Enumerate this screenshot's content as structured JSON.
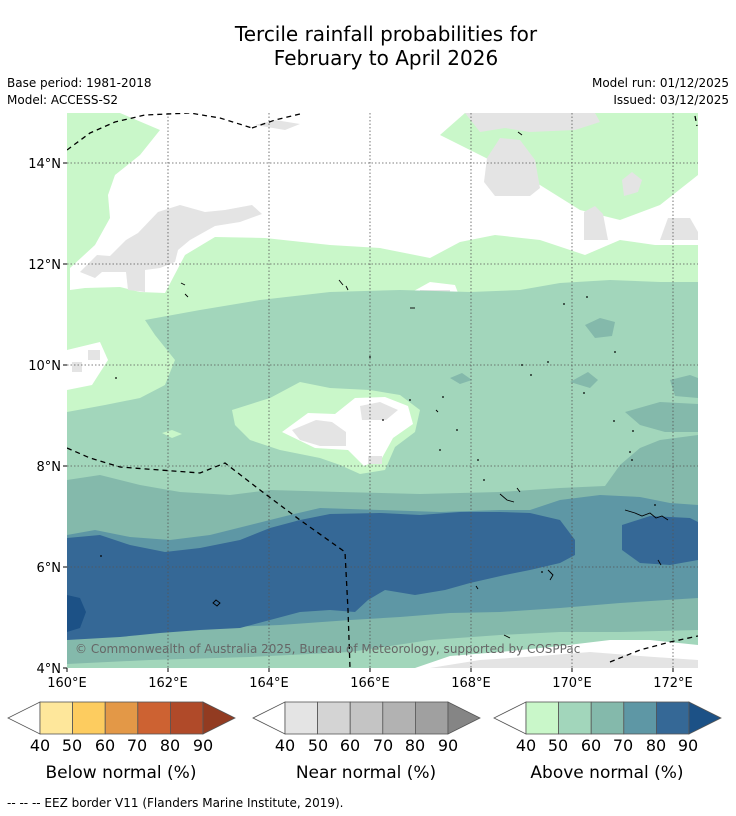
{
  "title": {
    "line1": "Tercile rainfall probabilities for",
    "line2": "February to April 2026"
  },
  "meta": {
    "base_period": "Base period: 1981-2018",
    "model": "Model: ACCESS-S2",
    "model_run": "Model run: 01/12/2025",
    "issued": "Issued: 03/12/2025"
  },
  "map": {
    "y_ticks": [
      "14°N",
      "12°N",
      "10°N",
      "8°N",
      "6°N",
      "4°N"
    ],
    "x_ticks": [
      "160°E",
      "162°E",
      "164°E",
      "166°E",
      "168°E",
      "170°E",
      "172°E"
    ],
    "copyright": "© Commonwealth of Australia 2025, Bureau of Meteorology, supported by COSPPac"
  },
  "legends": {
    "tick_labels": [
      "40",
      "50",
      "60",
      "70",
      "80",
      "90"
    ],
    "below": {
      "label": "Below normal (%)",
      "colors": [
        "#fee79b",
        "#fdcc5f",
        "#e39847",
        "#cd6232",
        "#b04a29",
        "#923b21"
      ]
    },
    "near": {
      "label": "Near normal (%)",
      "colors": [
        "#e4e4e4",
        "#d4d4d4",
        "#c4c4c4",
        "#b2b2b2",
        "#a0a0a0",
        "#858585"
      ]
    },
    "above": {
      "label": "Above normal (%)",
      "colors": [
        "#c9f7c9",
        "#a2d6bb",
        "#84b9ab",
        "#5e97a5",
        "#356896",
        "#1c5186"
      ]
    }
  },
  "footer": "--  --  -- EEZ border V11 (Flanders Marine Institute, 2019)."
}
